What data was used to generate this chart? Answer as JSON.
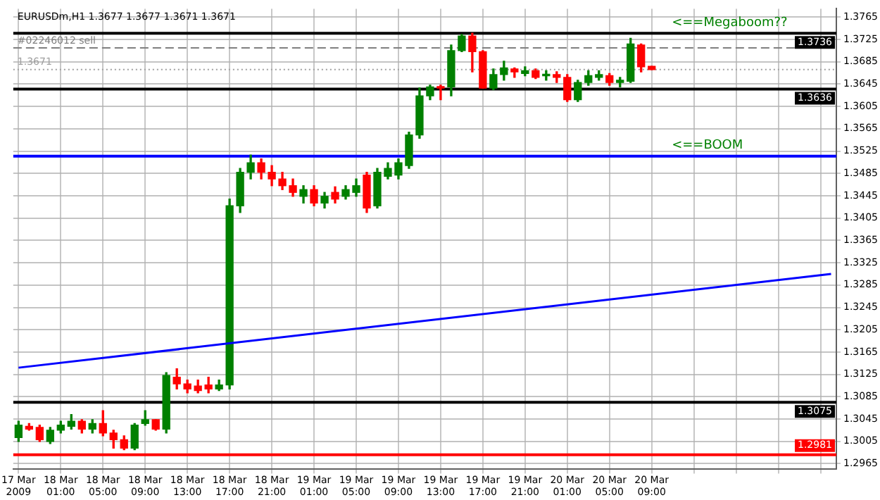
{
  "chart_data": {
    "type": "candlestick",
    "title": "EURUSDm,H1 1.3677 1.3677 1.3671 1.3671",
    "categories": [
      "17 Mar 2009",
      null,
      null,
      null,
      "18 Mar 01:00",
      null,
      null,
      null,
      "18 Mar 05:00",
      null,
      null,
      null,
      "18 Mar 09:00",
      null,
      null,
      null,
      "18 Mar 13:00",
      null,
      null,
      null,
      "18 Mar 17:00",
      null,
      null,
      null,
      "18 Mar 21:00",
      null,
      null,
      null,
      "19 Mar 01:00",
      null,
      null,
      null,
      "19 Mar 05:00",
      null,
      null,
      null,
      "19 Mar 09:00",
      null,
      null,
      null,
      "19 Mar 13:00",
      null,
      null,
      null,
      "19 Mar 17:00",
      null,
      null,
      null,
      "19 Mar 21:00",
      null,
      null,
      null,
      "20 Mar 01:00",
      null,
      null,
      null,
      "20 Mar 05:00",
      null,
      null,
      null,
      "20 Mar 09:00",
      null,
      null,
      null,
      null,
      null,
      null,
      null,
      null,
      null,
      null,
      null,
      null,
      null,
      null,
      null,
      null,
      null
    ],
    "ohlc": [
      [
        1.3012,
        1.3041,
        1.3005,
        1.3034
      ],
      [
        1.3032,
        1.3037,
        1.3025,
        1.3027
      ],
      [
        1.303,
        1.3034,
        1.3005,
        1.3008
      ],
      [
        1.3005,
        1.303,
        1.3001,
        1.3025
      ],
      [
        1.3025,
        1.3041,
        1.302,
        1.3034
      ],
      [
        1.3032,
        1.3053,
        1.3027,
        1.3041
      ],
      [
        1.3041,
        1.3044,
        1.302,
        1.3027
      ],
      [
        1.3027,
        1.3044,
        1.302,
        1.3037
      ],
      [
        1.3037,
        1.306,
        1.3015,
        1.302
      ],
      [
        1.302,
        1.3025,
        1.2993,
        1.3008
      ],
      [
        1.3008,
        1.3015,
        1.299,
        1.2993
      ],
      [
        1.2993,
        1.3037,
        1.299,
        1.3034
      ],
      [
        1.3037,
        1.306,
        1.3034,
        1.3044
      ],
      [
        1.3044,
        1.3044,
        1.3025,
        1.3027
      ],
      [
        1.3027,
        1.3128,
        1.302,
        1.3123
      ],
      [
        1.312,
        1.3135,
        1.3099,
        1.3108
      ],
      [
        1.3108,
        1.3115,
        1.3092,
        1.3099
      ],
      [
        1.3104,
        1.3115,
        1.3092,
        1.3096
      ],
      [
        1.3106,
        1.312,
        1.3092,
        1.3099
      ],
      [
        1.3099,
        1.3115,
        1.3096,
        1.3106
      ],
      [
        1.3106,
        1.3439,
        1.3099,
        1.3427
      ],
      [
        1.3427,
        1.3494,
        1.3415,
        1.3487
      ],
      [
        1.3487,
        1.3518,
        1.3475,
        1.3504
      ],
      [
        1.3504,
        1.3511,
        1.3475,
        1.3487
      ],
      [
        1.3487,
        1.3499,
        1.3463,
        1.3475
      ],
      [
        1.3475,
        1.3487,
        1.3456,
        1.3463
      ],
      [
        1.3463,
        1.3475,
        1.3444,
        1.3451
      ],
      [
        1.3444,
        1.3463,
        1.3432,
        1.3456
      ],
      [
        1.3456,
        1.3463,
        1.3427,
        1.3432
      ],
      [
        1.3432,
        1.3451,
        1.3423,
        1.3444
      ],
      [
        1.3451,
        1.3461,
        1.3432,
        1.3439
      ],
      [
        1.3444,
        1.3463,
        1.3439,
        1.3456
      ],
      [
        1.3451,
        1.3475,
        1.3444,
        1.3463
      ],
      [
        1.3482,
        1.3487,
        1.3415,
        1.3423
      ],
      [
        1.3427,
        1.3494,
        1.3423,
        1.3487
      ],
      [
        1.348,
        1.3504,
        1.3475,
        1.3494
      ],
      [
        1.3482,
        1.3511,
        1.3475,
        1.3504
      ],
      [
        1.3499,
        1.3559,
        1.3494,
        1.3554
      ],
      [
        1.3554,
        1.3638,
        1.3548,
        1.3624
      ],
      [
        1.3624,
        1.3643,
        1.3617,
        1.364
      ],
      [
        1.364,
        1.3643,
        1.3617,
        1.3638
      ],
      [
        1.364,
        1.3715,
        1.3624,
        1.3705
      ],
      [
        1.3705,
        1.3734,
        1.3703,
        1.3731
      ],
      [
        1.3731,
        1.3736,
        1.3667,
        1.3703
      ],
      [
        1.3703,
        1.3705,
        1.3638,
        1.3638
      ],
      [
        1.3638,
        1.3672,
        1.3635,
        1.3662
      ],
      [
        1.3662,
        1.3686,
        1.3652,
        1.3674
      ],
      [
        1.3672,
        1.3674,
        1.3657,
        1.3667
      ],
      [
        1.3664,
        1.3676,
        1.366,
        1.3669
      ],
      [
        1.3669,
        1.3672,
        1.3655,
        1.3657
      ],
      [
        1.366,
        1.3669,
        1.3652,
        1.366
      ],
      [
        1.3662,
        1.3667,
        1.3648,
        1.3657
      ],
      [
        1.3657,
        1.3662,
        1.3614,
        1.3617
      ],
      [
        1.3617,
        1.3652,
        1.3614,
        1.3648
      ],
      [
        1.3648,
        1.3669,
        1.3643,
        1.366
      ],
      [
        1.3657,
        1.3669,
        1.3652,
        1.3662
      ],
      [
        1.366,
        1.3664,
        1.3643,
        1.3648
      ],
      [
        1.3648,
        1.3657,
        1.364,
        1.3652
      ],
      [
        1.365,
        1.3727,
        1.3648,
        1.3717
      ],
      [
        1.3715,
        1.3717,
        1.3667,
        1.3676
      ],
      [
        1.3677,
        1.3677,
        1.3671,
        1.3671
      ],
      null,
      null,
      null,
      null,
      null,
      null,
      null,
      null,
      null,
      null,
      null,
      null,
      null,
      null,
      null,
      null,
      null
    ],
    "series": [
      {
        "type": "line",
        "color": "#0000ff",
        "values": [
          1.3137,
          null,
          null,
          null,
          null,
          null,
          null,
          null,
          null,
          null,
          null,
          null,
          null,
          null,
          null,
          null,
          null,
          null,
          null,
          null,
          null,
          null,
          null,
          null,
          null,
          null,
          null,
          null,
          null,
          null,
          null,
          null,
          null,
          null,
          null,
          null,
          null,
          null,
          null,
          null,
          null,
          null,
          null,
          null,
          null,
          null,
          null,
          null,
          null,
          null,
          null,
          null,
          null,
          null,
          null,
          null,
          null,
          null,
          null,
          null,
          null,
          null,
          null,
          null,
          null,
          null,
          null,
          null,
          null,
          null,
          null,
          null,
          null,
          null,
          null,
          null,
          null,
          1.3305
        ]
      }
    ],
    "ylim": [
      1.2955,
      1.378
    ],
    "yticks": [
      1.2965,
      1.3005,
      1.3045,
      1.3085,
      1.3125,
      1.3165,
      1.3205,
      1.3245,
      1.3285,
      1.3325,
      1.3365,
      1.3405,
      1.3445,
      1.3485,
      1.3525,
      1.3565,
      1.3605,
      1.3645,
      1.3685,
      1.3725,
      1.3765
    ],
    "ref_lines": [
      {
        "axis": "y",
        "value": 1.3736,
        "label": "1.3736",
        "color": "#000000"
      },
      {
        "axis": "y",
        "value": 1.371,
        "label": "#02246012 sell",
        "color": "#808080",
        "line_style": "dashed"
      },
      {
        "axis": "y",
        "value": 1.3671,
        "label": "1.3671",
        "color": "#a0a0a0",
        "line_style": "dotted"
      },
      {
        "axis": "y",
        "value": 1.3636,
        "label": "1.3636",
        "color": "#000000"
      },
      {
        "axis": "y",
        "value": 1.3516,
        "color": "#0000ff"
      },
      {
        "axis": "y",
        "value": 1.3075,
        "label": "1.3075",
        "color": "#000000"
      },
      {
        "axis": "y",
        "value": 1.2981,
        "label": "1.2981",
        "color": "#ff0000"
      }
    ],
    "annotations": [
      {
        "text": "<==Megaboom??",
        "y": 1.3736
      },
      {
        "text": "<==BOOM",
        "y": 1.3516
      }
    ],
    "grid": true,
    "legend": false
  }
}
